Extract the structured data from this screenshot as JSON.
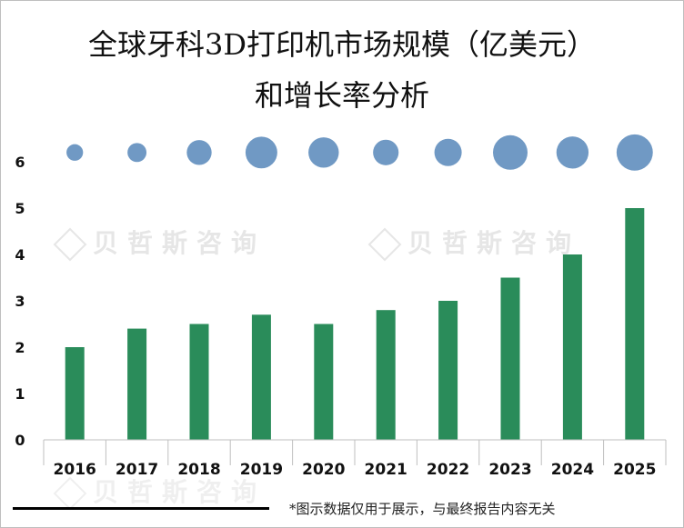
{
  "title_line1": "全球牙科3D打印机市场规模（亿美元）",
  "title_line2": "和增长率分析",
  "watermark_text": "贝哲斯咨询",
  "footnote": "*图示数据仅用于展示，与最终报告内容无关",
  "colors": {
    "bar": "#2a8c5a",
    "bubble": "#7099c4"
  },
  "chart_data": {
    "type": "bar",
    "categories": [
      "2016",
      "2017",
      "2018",
      "2019",
      "2020",
      "2021",
      "2022",
      "2023",
      "2024",
      "2025"
    ],
    "series": [
      {
        "values": [
          2.0,
          2.4,
          2.5,
          2.7,
          2.5,
          2.8,
          3.0,
          3.5,
          4.0,
          5.0
        ]
      }
    ],
    "growth_bubbles": {
      "y": 6.2,
      "relative_size": [
        0.48,
        0.55,
        0.72,
        0.92,
        0.88,
        0.74,
        0.79,
        1.0,
        0.93,
        1.05
      ]
    },
    "yticks": [
      "0",
      "1",
      "2",
      "3",
      "4",
      "5",
      "6"
    ],
    "ylim": [
      0,
      6.6
    ],
    "xlabel": "",
    "ylabel": ""
  }
}
